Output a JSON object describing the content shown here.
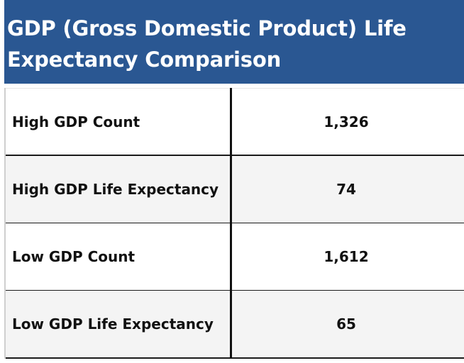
{
  "chart_data": {
    "type": "table",
    "title": "GDP (Gross Domestic Product) Life Expectancy Comparison",
    "rows": [
      {
        "label": "High GDP Count",
        "value": "1,326"
      },
      {
        "label": "High GDP Life Expectancy",
        "value": "74"
      },
      {
        "label": "Low GDP Count",
        "value": "1,612"
      },
      {
        "label": "Low GDP Life Expectancy",
        "value": "65"
      }
    ]
  },
  "colors": {
    "header_background": "#2a5792",
    "header_text": "#ffffff",
    "row_alt_background": "#f4f4f4"
  }
}
